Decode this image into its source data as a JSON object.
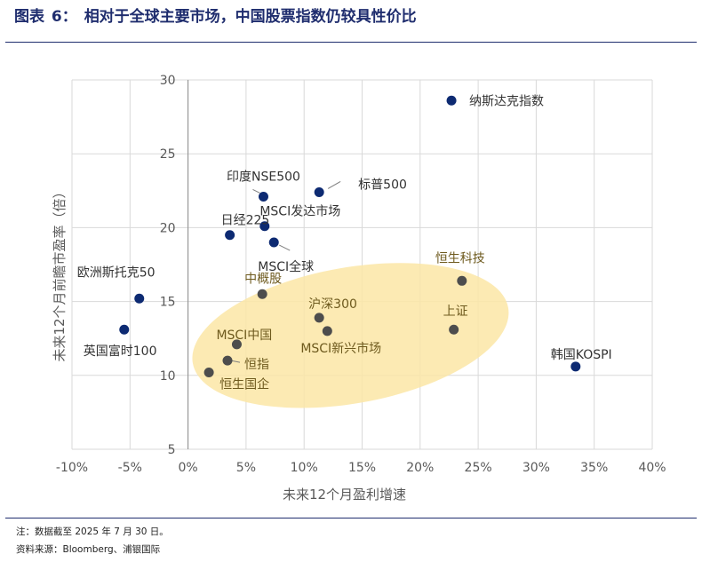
{
  "figure": {
    "label": "图表",
    "number": "6：",
    "title": "相对于全球主要市场，中国股票指数仍较具性价比"
  },
  "footnotes": {
    "note": "注：数据截至 2025 年 7 月 30 日。",
    "source": "资料来源：Bloomberg、浦银国际"
  },
  "colors": {
    "blue": "#0d2a72",
    "grey": "#4d4d4d",
    "ellipse": "#fbe6a6",
    "grid": "#d9d9d9",
    "axis_text": "#595959",
    "blue_label": "#333333",
    "grey_label": "#6e5a1e"
  },
  "chart_data": {
    "type": "scatter",
    "title": "",
    "xlabel": "未来12个月盈利增速",
    "ylabel": "未来12个月前瞻市盈率（倍）",
    "xlim": [
      -0.1,
      0.4
    ],
    "ylim": [
      5,
      30
    ],
    "x_ticks": [
      -0.1,
      -0.05,
      0,
      0.05,
      0.1,
      0.15,
      0.2,
      0.25,
      0.3,
      0.35,
      0.4
    ],
    "x_tick_labels": [
      "-10%",
      "-5%",
      "0%",
      "5%",
      "10%",
      "15%",
      "20%",
      "25%",
      "30%",
      "35%",
      "40%"
    ],
    "y_ticks": [
      5,
      10,
      15,
      20,
      25,
      30
    ],
    "y_tick_labels": [
      "5",
      "10",
      "15",
      "20",
      "25",
      "30"
    ],
    "grid": true,
    "points": [
      {
        "name": "纳斯达克指数",
        "x": 0.227,
        "y": 28.6,
        "group": "global"
      },
      {
        "name": "标普500",
        "x": 0.113,
        "y": 22.4,
        "group": "global"
      },
      {
        "name": "印度NSE500",
        "x": 0.065,
        "y": 22.1,
        "group": "global"
      },
      {
        "name": "MSCI发达市场",
        "x": 0.066,
        "y": 20.1,
        "group": "global"
      },
      {
        "name": "日经225",
        "x": 0.036,
        "y": 19.5,
        "group": "global"
      },
      {
        "name": "MSCI全球",
        "x": 0.074,
        "y": 19.0,
        "group": "global"
      },
      {
        "name": "欧洲斯托克50",
        "x": -0.042,
        "y": 15.2,
        "group": "global"
      },
      {
        "name": "英国富时100",
        "x": -0.055,
        "y": 13.1,
        "group": "global"
      },
      {
        "name": "韩国KOSPI",
        "x": 0.334,
        "y": 10.6,
        "group": "global"
      },
      {
        "name": "中概股",
        "x": 0.064,
        "y": 15.5,
        "group": "china"
      },
      {
        "name": "恒生科技",
        "x": 0.236,
        "y": 16.4,
        "group": "china"
      },
      {
        "name": "沪深300",
        "x": 0.113,
        "y": 13.9,
        "group": "china"
      },
      {
        "name": "上证",
        "x": 0.229,
        "y": 13.1,
        "group": "china"
      },
      {
        "name": "MSCI新兴市场",
        "x": 0.12,
        "y": 13.0,
        "group": "china"
      },
      {
        "name": "MSCI中国",
        "x": 0.042,
        "y": 12.1,
        "group": "china"
      },
      {
        "name": "恒指",
        "x": 0.034,
        "y": 11.0,
        "group": "china"
      },
      {
        "name": "恒生国企",
        "x": 0.018,
        "y": 10.2,
        "group": "china"
      }
    ],
    "highlight_ellipse": {
      "cx": 0.14,
      "cy": 12.7,
      "rx": 0.138,
      "ry": 4.6,
      "rotation_deg": -10
    }
  }
}
